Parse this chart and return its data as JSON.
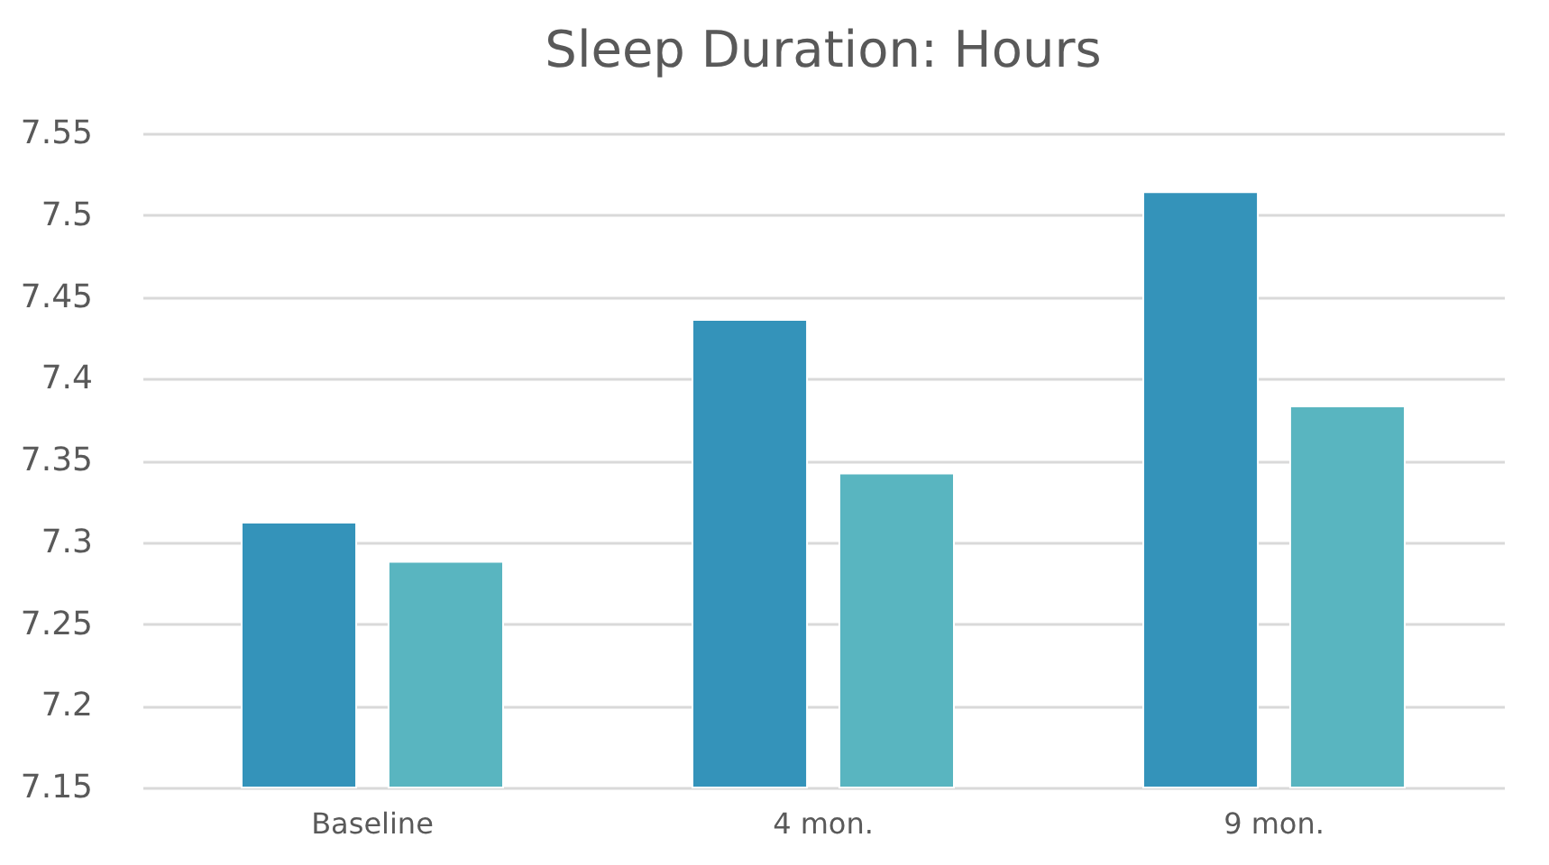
{
  "chart_data": {
    "type": "bar",
    "title": "Sleep Duration: Hours",
    "categories": [
      "Baseline",
      "4 mon.",
      "9 mon."
    ],
    "series": [
      {
        "color": "#3493ba",
        "values": [
          7.312,
          7.436,
          7.514
        ]
      },
      {
        "color": "#59b5c0",
        "values": [
          7.288,
          7.342,
          7.383
        ]
      }
    ],
    "ylim": [
      7.15,
      7.55
    ],
    "yticks": [
      7.15,
      7.2,
      7.25,
      7.3,
      7.35,
      7.4,
      7.45,
      7.5,
      7.55
    ],
    "grid": "y",
    "legend": false
  }
}
